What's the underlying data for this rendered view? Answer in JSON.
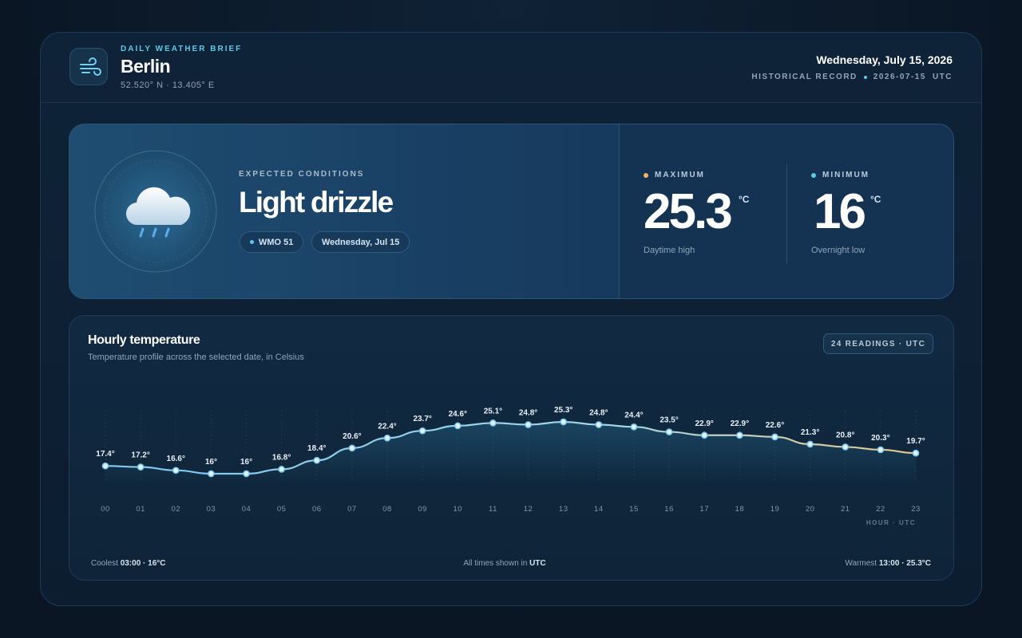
{
  "header": {
    "eyebrow": "DAILY WEATHER BRIEF",
    "city": "Berlin",
    "coords": "52.520° N · 13.405° E",
    "date": "Wednesday, July 15, 2026",
    "record": "HISTORICAL RECORD",
    "record_date": "2026-07-15",
    "record_tz": "UTC"
  },
  "conditions": {
    "label": "EXPECTED CONDITIONS",
    "summary": "Light drizzle",
    "wmo": "WMO 51",
    "day": "Wednesday, Jul 15"
  },
  "maximum": {
    "label": "MAXIMUM",
    "value": 25.3,
    "unit": "°C",
    "caption": "Daytime high"
  },
  "minimum": {
    "label": "MINIMUM",
    "value": 16,
    "unit": "°C",
    "caption": "Overnight low"
  },
  "chart_data": {
    "type": "line",
    "title": "Hourly temperature",
    "subtitle": "Temperature profile across the selected date, in Celsius",
    "badge": "24 READINGS · UTC",
    "x_label": "HOUR · UTC",
    "color": "#7cc6ee",
    "categories": [
      "00",
      "01",
      "02",
      "03",
      "04",
      "05",
      "06",
      "07",
      "08",
      "09",
      "10",
      "11",
      "12",
      "13",
      "14",
      "15",
      "16",
      "17",
      "18",
      "19",
      "20",
      "21",
      "22",
      "23"
    ],
    "values": [
      17.4,
      17.2,
      16.6,
      16,
      16,
      16.8,
      18.4,
      20.6,
      22.4,
      23.7,
      24.6,
      25.1,
      24.8,
      25.3,
      24.8,
      24.4,
      23.5,
      22.9,
      22.9,
      22.6,
      21.3,
      20.8,
      20.3,
      19.7
    ],
    "value_labels": [
      "17.4°",
      "17.2°",
      "16.6°",
      "16°",
      "16°",
      "16.8°",
      "18.4°",
      "20.6°",
      "22.4°",
      "23.7°",
      "24.6°",
      "25.1°",
      "24.8°",
      "25.3°",
      "24.8°",
      "24.4°",
      "23.5°",
      "22.9°",
      "22.9°",
      "22.6°",
      "21.3°",
      "20.8°",
      "20.3°",
      "19.7°"
    ]
  },
  "footer": {
    "coolest_label": "Coolest",
    "coolest": "03:00 · 16°C",
    "note": "All times shown in",
    "note_tz": "UTC",
    "warmest_label": "Warmest",
    "warmest": "13:00 · 25.3°C"
  }
}
